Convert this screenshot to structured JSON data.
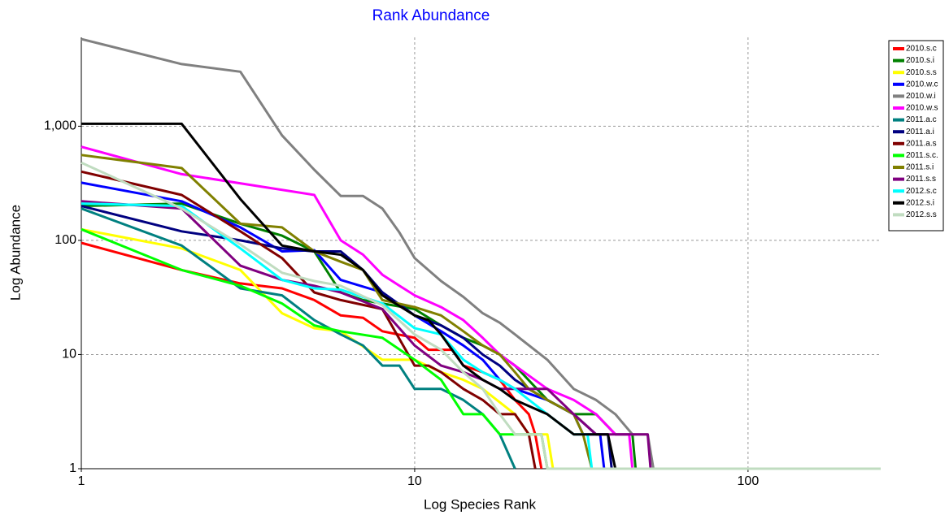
{
  "chart_data": {
    "type": "line",
    "title": "Rank Abundance",
    "xlabel": "Log Species Rank",
    "ylabel": "Log Abundance",
    "xlog": true,
    "ylog": true,
    "grid": true,
    "legend": "right",
    "xlim": [
      1,
      250
    ],
    "ylim": [
      1,
      6000
    ],
    "xticks": [
      1,
      10,
      100
    ],
    "yticks": [
      1,
      10,
      100,
      {
        "value": 1000,
        "label": "1,000"
      }
    ],
    "series": [
      {
        "name": "2010.s.c",
        "color": "#ff0000",
        "x": [
          1,
          2,
          3,
          4,
          5,
          6,
          7,
          8,
          10,
          11,
          13,
          14,
          16,
          18,
          20,
          22,
          23,
          24
        ],
        "values": [
          95,
          55,
          42,
          38,
          30,
          22,
          21,
          16,
          14,
          11,
          11,
          8,
          7,
          6,
          4,
          3,
          2,
          1
        ]
      },
      {
        "name": "2010.s.i",
        "color": "#008000",
        "x": [
          1,
          2,
          3,
          4,
          5,
          6,
          7,
          8,
          10,
          12,
          14,
          16,
          18,
          20,
          25,
          30,
          35,
          40,
          45,
          46
        ],
        "values": [
          200,
          210,
          140,
          110,
          80,
          35,
          30,
          28,
          25,
          18,
          14,
          12,
          10,
          8,
          4,
          3,
          3,
          2,
          2,
          1
        ]
      },
      {
        "name": "2010.s.s",
        "color": "#ffff00",
        "x": [
          1,
          2,
          3,
          4,
          5,
          6,
          8,
          10,
          12,
          14,
          16,
          20,
          22,
          25,
          26
        ],
        "values": [
          125,
          85,
          55,
          23,
          17,
          16,
          9,
          9,
          7,
          6,
          5,
          3,
          2,
          2,
          1
        ]
      },
      {
        "name": "2010.w.c",
        "color": "#0000ff",
        "x": [
          1,
          2,
          3,
          4,
          5,
          6,
          8,
          10,
          12,
          14,
          16,
          18,
          20,
          25,
          30,
          32,
          36,
          37
        ],
        "values": [
          320,
          220,
          130,
          80,
          82,
          45,
          35,
          22,
          16,
          12,
          9,
          6,
          5,
          4,
          3,
          2,
          2,
          1
        ]
      },
      {
        "name": "2010.w.i",
        "color": "#808080",
        "x": [
          1,
          2,
          3,
          4,
          5,
          6,
          7,
          8,
          9,
          10,
          12,
          14,
          16,
          18,
          20,
          25,
          30,
          35,
          40,
          45,
          50,
          52
        ],
        "values": [
          5800,
          3500,
          3000,
          830,
          415,
          245,
          245,
          190,
          117,
          70,
          44,
          32,
          23,
          19,
          15,
          9,
          5,
          4,
          3,
          2,
          2,
          1
        ]
      },
      {
        "name": "2010.w.s",
        "color": "#ff00ff",
        "x": [
          1,
          2,
          5,
          6,
          7,
          8,
          9,
          10,
          12,
          14,
          16,
          18,
          20,
          25,
          30,
          35,
          40,
          44,
          45
        ],
        "values": [
          660,
          380,
          250,
          100,
          75,
          50,
          40,
          33,
          26,
          20,
          14,
          10,
          8,
          5,
          4,
          3,
          2,
          2,
          1
        ]
      },
      {
        "name": "2011.a.c",
        "color": "#008080",
        "x": [
          1,
          2,
          3,
          4,
          5,
          6,
          7,
          8,
          9,
          10,
          12,
          14,
          16,
          18,
          20
        ],
        "values": [
          190,
          90,
          38,
          33,
          20,
          15,
          12,
          8,
          8,
          5,
          5,
          4,
          3,
          2,
          1
        ]
      },
      {
        "name": "2011.a.i",
        "color": "#000080",
        "x": [
          1,
          2,
          3,
          4,
          5,
          6,
          7,
          8,
          10,
          12,
          14,
          16,
          18,
          20,
          22,
          25,
          30,
          35,
          38,
          39
        ],
        "values": [
          200,
          120,
          100,
          85,
          80,
          80,
          55,
          35,
          22,
          18,
          14,
          10,
          8,
          6,
          5,
          4,
          3,
          2,
          2,
          1
        ]
      },
      {
        "name": "2011.a.s",
        "color": "#800000",
        "x": [
          1,
          2,
          3,
          4,
          5,
          6,
          8,
          10,
          11,
          12,
          14,
          16,
          18,
          20,
          22,
          23
        ],
        "values": [
          400,
          250,
          120,
          70,
          35,
          30,
          25,
          8,
          8,
          7,
          5,
          4,
          3,
          3,
          2,
          1
        ]
      },
      {
        "name": "2011.s.c.",
        "color": "#00ff00",
        "x": [
          1,
          2,
          3,
          4,
          5,
          6,
          8,
          10,
          12,
          14,
          16,
          18,
          24,
          25
        ],
        "values": [
          125,
          55,
          40,
          28,
          18,
          16,
          14,
          9,
          6,
          3,
          3,
          2,
          2,
          1
        ]
      },
      {
        "name": "2011.s.i",
        "color": "#808000",
        "x": [
          1,
          2,
          3,
          4,
          5,
          6,
          7,
          8,
          10,
          12,
          14,
          16,
          18,
          20,
          22,
          25,
          30,
          32,
          34
        ],
        "values": [
          560,
          430,
          140,
          130,
          80,
          65,
          55,
          30,
          26,
          22,
          16,
          12,
          10,
          7,
          5,
          4,
          3,
          2,
          1
        ]
      },
      {
        "name": "2011.s.s",
        "color": "#800080",
        "x": [
          1,
          2,
          3,
          4,
          5,
          6,
          8,
          10,
          12,
          14,
          16,
          18,
          20,
          25,
          30,
          35,
          50,
          51
        ],
        "values": [
          220,
          190,
          60,
          45,
          40,
          35,
          25,
          12,
          8,
          7,
          6,
          5,
          5,
          5,
          3,
          2,
          2,
          1
        ]
      },
      {
        "name": "2012.s.c",
        "color": "#00ffff",
        "x": [
          1,
          2,
          3,
          4,
          5,
          6,
          8,
          10,
          12,
          14,
          16,
          18,
          20,
          25,
          30,
          33,
          34
        ],
        "values": [
          210,
          200,
          85,
          45,
          38,
          37,
          28,
          17,
          15,
          9,
          7,
          6,
          5,
          3,
          2,
          2,
          1
        ]
      },
      {
        "name": "2012.s.i",
        "color": "#000000",
        "x": [
          1,
          2,
          3,
          4,
          5,
          6,
          7,
          8,
          10,
          11,
          12,
          14,
          16,
          18,
          20,
          25,
          30,
          38,
          40
        ],
        "values": [
          1050,
          1050,
          230,
          90,
          80,
          75,
          55,
          33,
          22,
          20,
          15,
          8,
          6,
          5,
          4,
          3,
          2,
          2,
          1
        ]
      },
      {
        "name": "2012.s.s",
        "color": "#c0dcc0",
        "x": [
          1,
          2,
          3,
          4,
          5,
          6,
          8,
          10,
          12,
          14,
          16,
          18,
          20,
          24,
          25,
          250
        ],
        "values": [
          480,
          190,
          92,
          52,
          44,
          40,
          27,
          15,
          11,
          7,
          5,
          3,
          2,
          2,
          1,
          1
        ]
      }
    ]
  }
}
